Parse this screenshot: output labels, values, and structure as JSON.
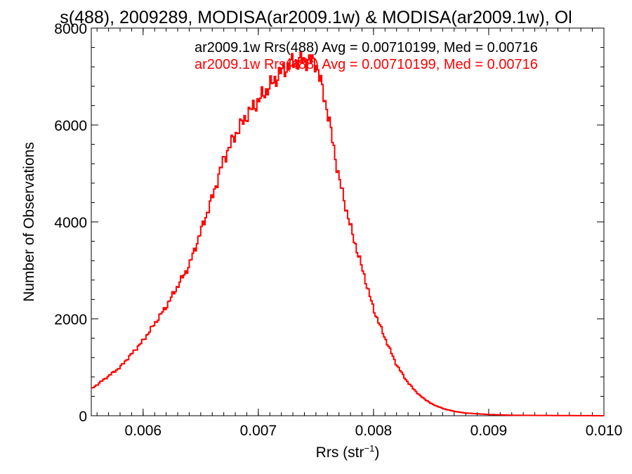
{
  "chart_data": {
    "type": "line",
    "title": "s(488), 2009289, MODISA(ar2009.1w) & MODISA(ar2009.1w), Ol",
    "xlabel": {
      "base": "Rrs (str",
      "sup": "−1",
      "close": ")"
    },
    "ylabel": "Number of Observations",
    "xlim": [
      0.00555,
      0.01
    ],
    "ylim": [
      0,
      8000
    ],
    "x_ticks": [
      0.006,
      0.007,
      0.008,
      0.009,
      0.01
    ],
    "x_tick_labels": [
      "0.006",
      "0.007",
      "0.008",
      "0.009",
      "0.010"
    ],
    "y_ticks": [
      0,
      2000,
      4000,
      6000,
      8000
    ],
    "y_tick_labels": [
      "0",
      "2000",
      "4000",
      "6000",
      "8000"
    ],
    "grid": false,
    "legend_position": "top-right",
    "legend": [
      {
        "text": "ar2009.1w Rrs(488) Avg = 0.00710199, Med = 0.00716",
        "color": "#000000"
      },
      {
        "text": "ar2009.1w Rrs(488) Avg = 0.00710199, Med = 0.00716",
        "color": "#ff0000"
      }
    ],
    "series": [
      {
        "color": "#ff0000",
        "x": [
          0.00555,
          0.0058,
          0.006,
          0.0062,
          0.0064,
          0.0065,
          0.0066,
          0.0067,
          0.0068,
          0.0069,
          0.007,
          0.0071,
          0.0072,
          0.0073,
          0.0074,
          0.0075,
          0.0076,
          0.0077,
          0.0078,
          0.0079,
          0.008,
          0.0081,
          0.0082,
          0.0083,
          0.0084,
          0.0085,
          0.0086,
          0.0087,
          0.0088,
          0.009,
          0.0092,
          0.0095,
          0.01
        ],
        "y": [
          550,
          1000,
          1550,
          2250,
          3100,
          3800,
          4500,
          5300,
          5800,
          6200,
          6500,
          6800,
          7100,
          7300,
          7350,
          7300,
          6300,
          4900,
          3900,
          3050,
          2200,
          1600,
          1050,
          680,
          420,
          250,
          150,
          90,
          55,
          25,
          10,
          5,
          0
        ]
      }
    ]
  }
}
